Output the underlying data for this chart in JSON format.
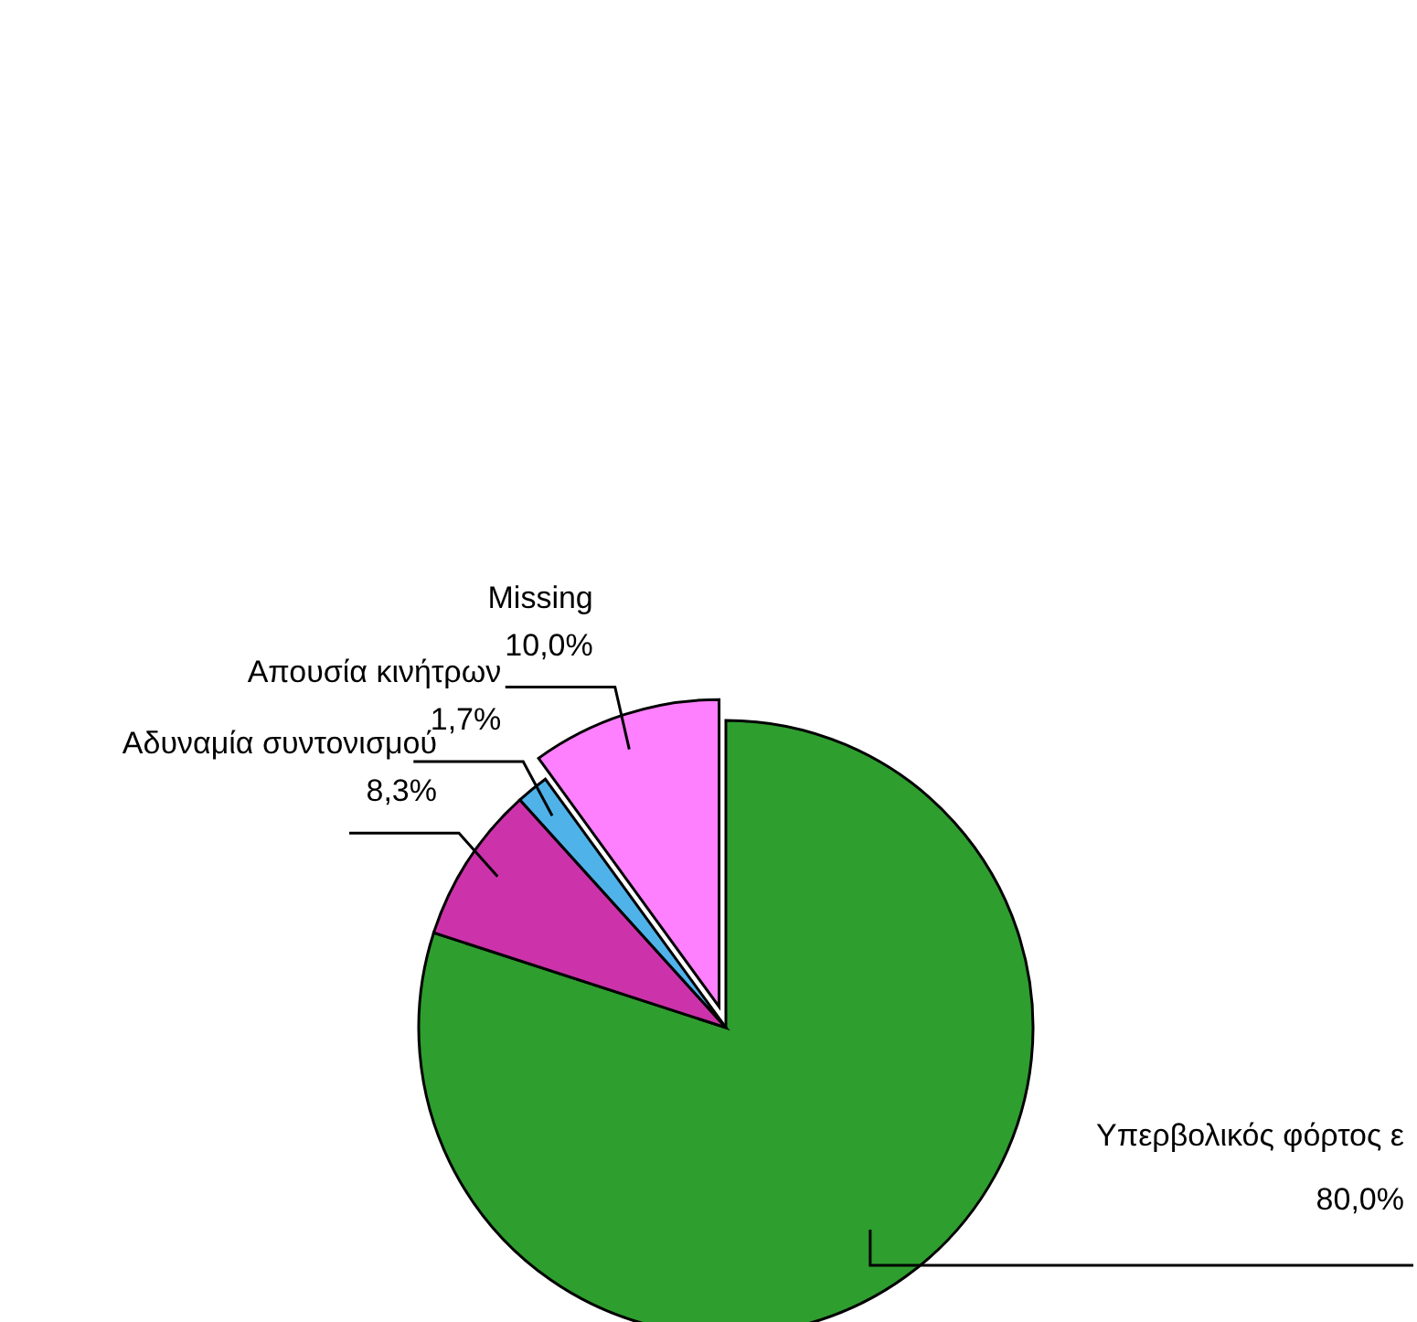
{
  "chart_data": {
    "type": "pie",
    "categories": [
      "Υπερβολικός φόρτος ε",
      "Αδυναμία συντονισμού",
      "Απουσία κινήτρων",
      "Missing"
    ],
    "values": [
      80.0,
      8.3,
      1.7,
      10.0
    ],
    "value_labels": [
      "80,0%",
      "8,3%",
      "1,7%",
      "10,0%"
    ],
    "colors": [
      "#2e9e2e",
      "#cc33aa",
      "#4fb3ea",
      "#ff80ff"
    ],
    "legend": false
  }
}
